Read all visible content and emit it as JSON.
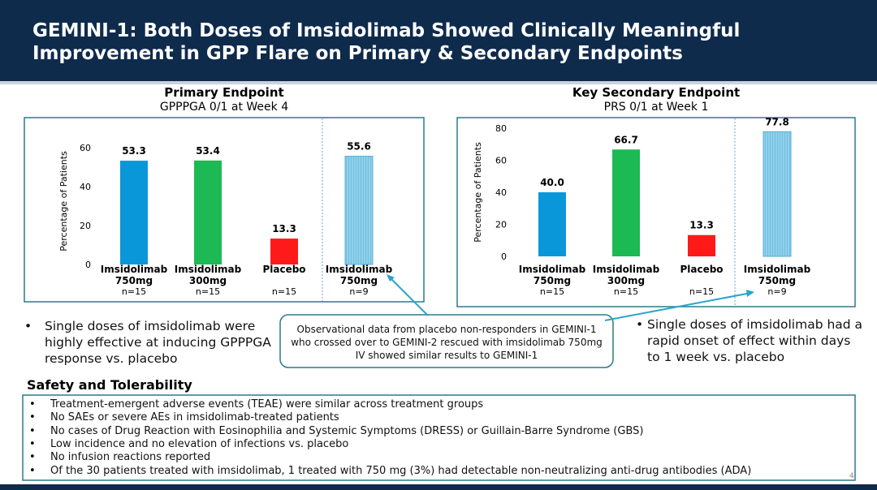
{
  "header": {
    "title_lines": [
      "GEMINI-1: Both Doses of Imsidolimab Showed Clinically Meaningful",
      "Improvement in GPP Flare on Primary & Secondary Endpoints"
    ]
  },
  "chart_data": [
    {
      "type": "bar",
      "title": "Primary Endpoint",
      "subtitle": "GPPPGA 0/1 at Week 4",
      "y_label": "Percentage of Patients",
      "categories": [
        "Imsidolimab 750mg",
        "Imsidolimab 300mg",
        "Placebo",
        "Imsidolimab 750mg"
      ],
      "sample_sizes": [
        "n=15",
        "n=15",
        "n=15",
        "n=9"
      ],
      "values": [
        53.3,
        53.4,
        13.3,
        55.6
      ],
      "colors": [
        "#0a97d9",
        "#1db954",
        "#ff1a1a",
        "#8fd0ea"
      ],
      "hatched": [
        false,
        false,
        false,
        true
      ],
      "ylim": [
        0,
        65
      ],
      "yticks": [
        0,
        20,
        40,
        60
      ]
    },
    {
      "type": "bar",
      "title": "Key Secondary Endpoint",
      "subtitle": "PRS 0/1 at Week 1",
      "y_label": "Percentage of Patients",
      "categories": [
        "Imsidolimab 750mg",
        "Imsidolimab 300mg",
        "Placebo",
        "Imsidolimab 750mg"
      ],
      "sample_sizes": [
        "n=15",
        "n=15",
        "n=15",
        "n=9"
      ],
      "values": [
        40,
        66.7,
        13.3,
        77.8
      ],
      "value_labels": [
        "40.0",
        "66.7",
        "13.3",
        "77.8"
      ],
      "colors": [
        "#0a97d9",
        "#1db954",
        "#ff1a1a",
        "#8fd0ea"
      ],
      "hatched": [
        false,
        false,
        false,
        true
      ],
      "ylim": [
        0,
        80
      ],
      "yticks": [
        0,
        20,
        40,
        60,
        80
      ]
    }
  ],
  "callout": "Observational data from placebo non-responders in GEMINI-1 who crossed over to GEMINI-2 rescued with imsidolimab 750mg IV showed similar results to GEMINI-1",
  "bullets_left": [
    "Single doses of imsidolimab were highly effective at inducing GPPPGA response vs. placebo"
  ],
  "bullets_right": [
    "Single doses of imsidolimab had a rapid onset of effect within days to 1 week vs. placebo"
  ],
  "safety": {
    "title": "Safety and Tolerability",
    "items": [
      "Treatment-emergent adverse events (TEAE) were similar across treatment groups",
      "No SAEs or severe AEs in imsidolimab-treated patients",
      "No cases of Drug Reaction with Eosinophilia and Systemic Symptoms (DRESS) or Guillain-Barre Syndrome (GBS)",
      "Low incidence and no elevation of infections vs. placebo",
      "No infusion reactions reported",
      "Of the 30 patients treated with imsidolimab, 1 treated with 750 mg (3%) had detectable non-neutralizing anti-drug antibodies (ADA)"
    ]
  },
  "page_number": "4"
}
